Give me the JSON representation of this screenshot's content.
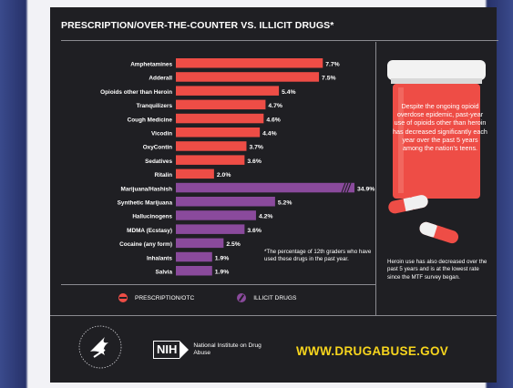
{
  "title": "PRESCRIPTION/OVER-THE-COUNTER VS. ILLICIT DRUGS*",
  "chart_data": {
    "type": "bar",
    "orientation": "horizontal",
    "categories": [
      "Amphetamines",
      "Adderall",
      "Opioids other than Heroin",
      "Tranquilizers",
      "Cough Medicine",
      "Vicodin",
      "OxyContin",
      "Sedatives",
      "Ritalin",
      "Marijuana/Hashish",
      "Synthetic Marijuana",
      "Hallucinogens",
      "MDMA (Ecstasy)",
      "Cocaine (any form)",
      "Inhalants",
      "Salvia"
    ],
    "values": [
      7.7,
      7.5,
      5.4,
      4.7,
      4.6,
      4.4,
      3.7,
      3.6,
      2.0,
      34.9,
      5.2,
      4.2,
      3.6,
      2.5,
      1.9,
      1.9
    ],
    "value_labels": [
      "7.7%",
      "7.5%",
      "5.4%",
      "4.7%",
      "4.6%",
      "4.4%",
      "3.7%",
      "3.6%",
      "2.0%",
      "34.9%",
      "5.2%",
      "4.2%",
      "3.6%",
      "2.5%",
      "1.9%",
      "1.9%"
    ],
    "groups": [
      "Prescription/OTC",
      "Prescription/OTC",
      "Prescription/OTC",
      "Prescription/OTC",
      "Prescription/OTC",
      "Prescription/OTC",
      "Prescription/OTC",
      "Prescription/OTC",
      "Prescription/OTC",
      "Illicit",
      "Illicit",
      "Illicit",
      "Illicit",
      "Illicit",
      "Illicit",
      "Illicit"
    ],
    "axis_break_on": "Marijuana/Hashish",
    "xlim": [
      0,
      8.5
    ],
    "colors": {
      "prescription": "#ee4d46",
      "illicit": "#8a4a9c"
    },
    "legend": [
      {
        "label": "PRESCRIPTION/OTC",
        "color": "#ee4d46"
      },
      {
        "label": "ILLICIT DRUGS",
        "color": "#8a4a9c"
      }
    ],
    "legend_position": "bottom",
    "grid": false
  },
  "footnote": "*The percentage of 12th graders who have used these drugs in the past year.",
  "bottle_text": "Despite the ongoing opioid overdose epidemic, past-year use of opioids other than heroin has decreased significantly each year over the past 5 years among the nation's teens.",
  "side_note": "Heroin use has also decreased over the past 5 years and is at the lowest rate since the MTF survey began.",
  "footer": {
    "nih_letters": "NIH",
    "nih_name": "National Institute on Drug Abuse",
    "website": "WWW.DRUGABUSE.GOV",
    "hhs_icon": "hhs-seal-icon"
  },
  "colors": {
    "background": "#1f1f23",
    "bottle": "#ee4d46",
    "website": "#f7d51d",
    "slide_frame": "#27326a"
  }
}
